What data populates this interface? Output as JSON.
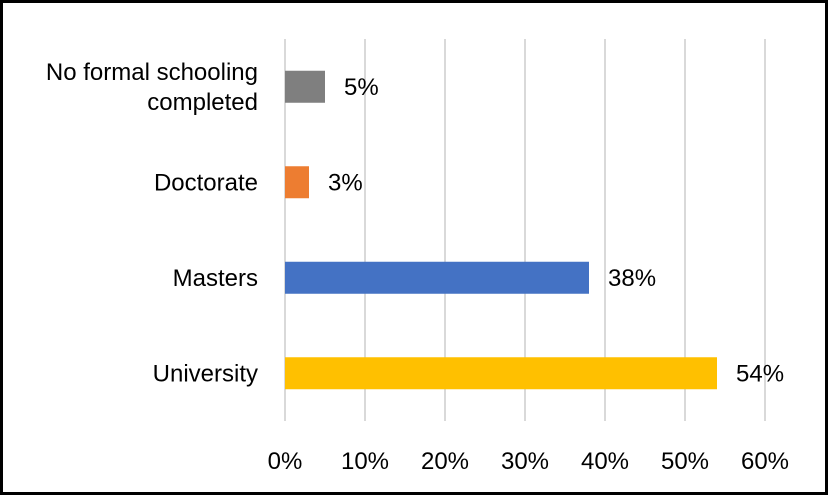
{
  "chart_data": {
    "type": "bar",
    "orientation": "horizontal",
    "title": "",
    "xlabel": "",
    "ylabel": "",
    "categories": [
      "No formal schooling completed",
      "Doctorate",
      "Masters",
      "University"
    ],
    "category_lines": [
      [
        "No formal schooling",
        "completed"
      ],
      [
        "Doctorate"
      ],
      [
        "Masters"
      ],
      [
        "University"
      ]
    ],
    "values": [
      5,
      3,
      38,
      54
    ],
    "data_labels": [
      "5%",
      "3%",
      "38%",
      "54%"
    ],
    "colors": [
      "#7f7f7f",
      "#ed7d31",
      "#4472c4",
      "#ffc000"
    ],
    "xlim": [
      0,
      60
    ],
    "x_ticks": [
      0,
      10,
      20,
      30,
      40,
      50,
      60
    ],
    "x_tick_labels": [
      "0%",
      "10%",
      "20%",
      "30%",
      "40%",
      "50%",
      "60%"
    ],
    "grid": "vertical",
    "grid_color": "#d9d9d9",
    "legend": "none"
  }
}
